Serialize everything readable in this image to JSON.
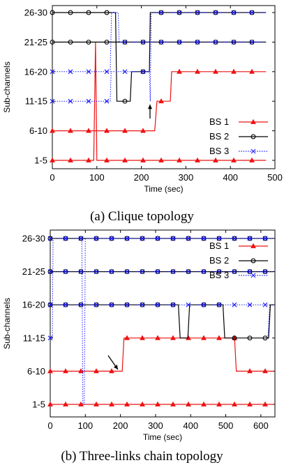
{
  "captions": {
    "a": "(a)  Clique topology",
    "b": "(b)  Three-links chain topology"
  },
  "colors": {
    "BS 1": "#ee1111",
    "BS 2": "#000000",
    "BS 3": "#1a1aff"
  },
  "chart_data": [
    {
      "type": "line",
      "xlabel": "Time (sec)",
      "ylabel": "Sub-channels",
      "xlim": [
        0,
        500
      ],
      "xticks": [
        0,
        100,
        200,
        300,
        400,
        500
      ],
      "yticks": [
        "1-5",
        "6-10",
        "11-15",
        "16-20",
        "21-25",
        "26-30"
      ],
      "grid": false,
      "legend_position": "bottom-right",
      "annotation": "arrow pointing to BS 3 switch near t=220 s",
      "series": [
        {
          "name": "BS 1",
          "marker": "triangle",
          "dash": "solid",
          "segments": [
            {
              "points": [
                [
                  0,
                  0
                ],
                [
                  93,
                  0
                ],
                [
                  97,
                  4
                ],
                [
                  100,
                  0
                ],
                [
                  480,
                  0
                ]
              ]
            },
            {
              "points": [
                [
                  0,
                  1
                ],
                [
                  230,
                  1
                ],
                [
                  235,
                  2
                ],
                [
                  265,
                  2
                ],
                [
                  268,
                  3
                ],
                [
                  480,
                  3
                ]
              ]
            }
          ]
        },
        {
          "name": "BS 2",
          "marker": "circle",
          "dash": "solid",
          "segments": [
            {
              "points": [
                [
                  0,
                  5
                ],
                [
                  142,
                  5
                ],
                [
                  145,
                  2
                ],
                [
                  175,
                  2
                ],
                [
                  178,
                  3
                ],
                [
                  218,
                  3
                ],
                [
                  220,
                  5
                ],
                [
                  480,
                  5
                ]
              ]
            },
            {
              "points": [
                [
                  0,
                  4
                ],
                [
                  480,
                  4
                ]
              ]
            }
          ]
        },
        {
          "name": "BS 3",
          "marker": "x",
          "dash": "dotted",
          "segments": [
            {
              "points": [
                [
                  0,
                  3
                ],
                [
                  130,
                  3
                ],
                [
                  133,
                  5
                ],
                [
                  148,
                  5
                ],
                [
                  150,
                  4
                ],
                [
                  480,
                  4
                ]
              ]
            },
            {
              "points": [
                [
                  0,
                  2
                ],
                [
                  130,
                  2
                ],
                [
                  132,
                  3
                ],
                [
                  218,
                  3
                ],
                [
                  220,
                  2
                ],
                [
                  222,
                  5
                ],
                [
                  480,
                  5
                ]
              ]
            }
          ]
        }
      ]
    },
    {
      "type": "line",
      "xlabel": "Time (sec)",
      "ylabel": "Sub-channels",
      "xlim": [
        0,
        640
      ],
      "xticks": [
        0,
        100,
        200,
        300,
        400,
        500,
        600
      ],
      "yticks": [
        "1-5",
        "6-10",
        "11-15",
        "16-20",
        "21-25",
        "26-30"
      ],
      "grid": false,
      "legend_position": "top-right",
      "annotation": "arrow pointing to BS 1 switch near t=200 s",
      "series": [
        {
          "name": "BS 1",
          "marker": "triangle",
          "dash": "solid",
          "segments": [
            {
              "points": [
                [
                  0,
                  0
                ],
                [
                  635,
                  0
                ]
              ]
            },
            {
              "points": [
                [
                  0,
                  1
                ],
                [
                  205,
                  1
                ],
                [
                  210,
                  2
                ],
                [
                  525,
                  2
                ],
                [
                  530,
                  1
                ],
                [
                  635,
                  1
                ]
              ]
            }
          ]
        },
        {
          "name": "BS 2",
          "marker": "circle",
          "dash": "solid",
          "segments": [
            {
              "points": [
                [
                  0,
                  5
                ],
                [
                  635,
                  5
                ]
              ]
            },
            {
              "points": [
                [
                  0,
                  4
                ],
                [
                  635,
                  4
                ]
              ]
            },
            {
              "points": [
                [
                  0,
                  3
                ],
                [
                  365,
                  3
                ],
                [
                  370,
                  2
                ],
                [
                  392,
                  2
                ],
                [
                  397,
                  3
                ],
                [
                  492,
                  3
                ],
                [
                  497,
                  2
                ],
                [
                  622,
                  2
                ],
                [
                  627,
                  3
                ],
                [
                  635,
                  3
                ]
              ]
            }
          ]
        },
        {
          "name": "BS 3",
          "marker": "x",
          "dash": "dotted",
          "segments": [
            {
              "points": [
                [
                  0,
                  5
                ],
                [
                  635,
                  5
                ]
              ]
            },
            {
              "points": [
                [
                  0,
                  4
                ],
                [
                  635,
                  4
                ]
              ]
            },
            {
              "points": [
                [
                  0,
                  3
                ],
                [
                  635,
                  3
                ]
              ]
            },
            {
              "points": [
                [
                  0,
                  2
                ],
                [
                  6,
                  2
                ],
                [
                  8,
                  5
                ],
                [
                  90,
                  5
                ],
                [
                  93,
                  0
                ],
                [
                  97,
                  0
                ],
                [
                  100,
                  5
                ],
                [
                  635,
                  5
                ]
              ]
            },
            {
              "points": [
                [
                  620,
                  2
                ],
                [
                  625,
                  3
                ]
              ]
            }
          ]
        }
      ]
    }
  ]
}
